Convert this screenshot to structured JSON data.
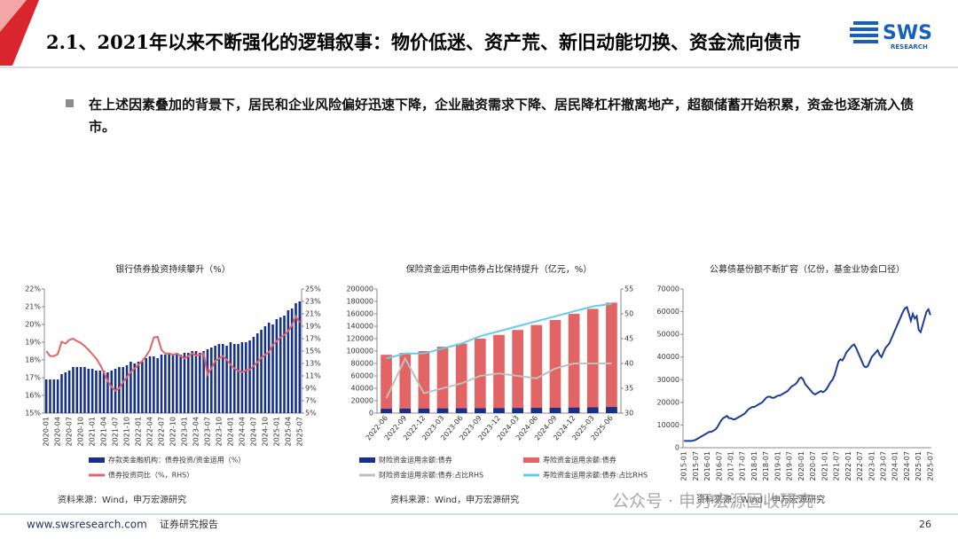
{
  "header": {
    "title": "2.1、2021年以来不断强化的逻辑叙事：物价低迷、资产荒、新旧动能切换、资金流向债市",
    "logo": "SWS",
    "logo_sub": "RESEARCH"
  },
  "bullet": "在上述因素叠加的背景下，居民和企业风险偏好迅速下降，企业融资需求下降、居民降杠杆撤离地产，超额储蓄开始积累，资金也逐渐流入债市。",
  "watermark": "公众号 · 申万宏源固收研究",
  "footer": {
    "website": "www.swsresearch.com",
    "report": "证券研究报告",
    "page": "26"
  },
  "chart_data": [
    {
      "type": "combo",
      "title": "银行债券投资持续攀升（%）",
      "source": "资料来源：Wind，申万宏源研究",
      "categories": [
        "2020-01",
        null,
        null,
        "2020-04",
        null,
        null,
        "2020-07",
        null,
        null,
        "2020-10",
        null,
        null,
        "2021-01",
        null,
        null,
        "2021-04",
        null,
        null,
        "2021-07",
        null,
        null,
        "2021-10",
        null,
        null,
        "2022-01",
        null,
        null,
        "2022-04",
        null,
        null,
        "2022-07",
        null,
        null,
        "2022-10",
        null,
        null,
        "2023-01",
        null,
        null,
        "2023-04",
        null,
        null,
        "2023-07",
        null,
        null,
        "2023-10",
        null,
        null,
        "2024-01",
        null,
        null,
        "2024-04",
        null,
        null,
        "2024-07",
        null,
        null,
        "2024-10",
        null,
        null,
        "2025-01",
        null,
        null,
        "2025-04",
        null,
        null,
        "2025-07"
      ],
      "series": [
        {
          "name": "存款类金融机构：债券投资/资金运用（%）",
          "mark": "bar",
          "color": "#15318a",
          "values": [
            16.9,
            16.9,
            16.9,
            16.9,
            17.2,
            17.3,
            17.4,
            17.6,
            17.6,
            17.6,
            17.6,
            17.5,
            17.5,
            17.4,
            17.4,
            17.4,
            17.3,
            17.4,
            17.5,
            17.6,
            17.6,
            17.7,
            17.9,
            17.8,
            17.9,
            17.9,
            18.1,
            18.2,
            18.2,
            18.1,
            18.3,
            18.3,
            18.4,
            18.3,
            18.4,
            18.3,
            18.4,
            18.4,
            18.5,
            18.5,
            18.4,
            18.5,
            18.6,
            18.7,
            18.8,
            18.9,
            18.9,
            18.8,
            19.0,
            18.9,
            18.9,
            19.0,
            19.0,
            19.1,
            19.3,
            19.5,
            19.7,
            19.9,
            20.1,
            20.0,
            20.3,
            20.4,
            20.5,
            20.8,
            20.9,
            21.2,
            21.3
          ]
        },
        {
          "name": "债券投资同比（%，RHS）",
          "mark": "line",
          "axis": "y2",
          "color": "#e36464",
          "values": [
            15,
            14.2,
            14.2,
            14.5,
            16.5,
            16.2,
            16.8,
            17,
            16.6,
            16.3,
            15.8,
            15.2,
            14.5,
            13.8,
            12.8,
            11.6,
            10.2,
            9.2,
            8.6,
            9.0,
            10.0,
            10.8,
            11.6,
            12.2,
            12.8,
            13.4,
            14.2,
            15.2,
            17.2,
            17.3,
            15.2,
            14.6,
            14.6,
            14.4,
            14.6,
            14.2,
            13.8,
            14.2,
            14.6,
            14.3,
            14.4,
            14.6,
            11.2,
            12.2,
            13.4,
            13.8,
            14.2,
            13.6,
            12.8,
            12.2,
            11.8,
            11.6,
            11.9,
            12.0,
            12.6,
            13.2,
            13.9,
            14.4,
            14.8,
            16.0,
            16.6,
            17.2,
            17.6,
            18.2,
            19.2,
            20.6,
            19.6
          ]
        }
      ],
      "ylim": [
        15,
        22
      ],
      "yticks": [
        {
          "value": 15,
          "label": "15%"
        },
        {
          "value": 16,
          "label": "16%"
        },
        {
          "value": 17,
          "label": "17%"
        },
        {
          "value": 18,
          "label": "18%"
        },
        {
          "value": 19,
          "label": "19%"
        },
        {
          "value": 20,
          "label": "20%"
        },
        {
          "value": 21,
          "label": "21%"
        },
        {
          "value": 22,
          "label": "22%"
        }
      ],
      "y2lim": [
        5,
        25
      ],
      "y2ticks": [
        {
          "value": 5,
          "label": "5%"
        },
        {
          "value": 7,
          "label": "7%"
        },
        {
          "value": 9,
          "label": "9%"
        },
        {
          "value": 11,
          "label": "11%"
        },
        {
          "value": 13,
          "label": "13%"
        },
        {
          "value": 15,
          "label": "15%"
        },
        {
          "value": 17,
          "label": "17%"
        },
        {
          "value": 19,
          "label": "19%"
        },
        {
          "value": 21,
          "label": "21%"
        },
        {
          "value": 23,
          "label": "23%"
        },
        {
          "value": 25,
          "label": "25%"
        }
      ]
    },
    {
      "type": "combo",
      "title": "保险资金运用中债券占比保持提升（亿元，%）",
      "source": "资料来源：Wind，申万宏源研究",
      "categories": [
        "2022-06",
        "2022-09",
        "2022-12",
        "2023-03",
        "2023-06",
        "2023-09",
        "2023-12",
        "2024-03",
        "2024-06",
        "2024-09",
        "2024-12",
        "2025-03",
        "2025-06"
      ],
      "series": [
        {
          "name": "财险资金运用余额:债券",
          "mark": "bar",
          "color": "#15318a",
          "values": [
            7000,
            7200,
            7300,
            7500,
            7700,
            7900,
            8000,
            8200,
            8400,
            8600,
            8900,
            9300,
            9800
          ]
        },
        {
          "name": "寿险资金运用余额:债券",
          "mark": "bar",
          "color": "#e36464",
          "values": [
            94000,
            97000,
            100000,
            107000,
            112000,
            120000,
            126000,
            134000,
            142000,
            150000,
            160000,
            168000,
            178000
          ]
        },
        {
          "name": "财险资金运用余额:债券:占比RHS",
          "mark": "line",
          "axis": "y2",
          "color": "#bfbfbf",
          "values": [
            33,
            41,
            34,
            35,
            36,
            37.5,
            38,
            37.5,
            37,
            39,
            40,
            40,
            40
          ]
        },
        {
          "name": "寿险资金运用余额:债券:占比RHS",
          "mark": "line",
          "axis": "y2",
          "color": "#66ccee",
          "values": [
            41,
            42,
            42,
            43,
            44,
            45.5,
            46.5,
            47.5,
            48.5,
            49.5,
            50.5,
            51.5,
            52
          ]
        }
      ],
      "ylim": [
        0,
        200000
      ],
      "yticks": [
        0,
        20000,
        40000,
        60000,
        80000,
        100000,
        120000,
        140000,
        160000,
        180000,
        200000
      ],
      "y2lim": [
        30,
        55
      ],
      "y2ticks": [
        30,
        35,
        40,
        45,
        50,
        55
      ]
    },
    {
      "type": "line",
      "title": "公募债基份额不断扩容（亿份，基金业协会口径）",
      "source": "资料来源：Wind，申万宏源研究",
      "color": "#1c3d99",
      "categories": [
        "2015-01",
        null,
        null,
        null,
        null,
        null,
        "2015-07",
        null,
        null,
        null,
        null,
        null,
        "2016-01",
        null,
        null,
        null,
        null,
        null,
        "2016-07",
        null,
        null,
        null,
        null,
        null,
        "2017-01",
        null,
        null,
        null,
        null,
        null,
        "2017-07",
        null,
        null,
        null,
        null,
        null,
        "2018-01",
        null,
        null,
        null,
        null,
        null,
        "2018-07",
        null,
        null,
        null,
        null,
        null,
        "2019-01",
        null,
        null,
        null,
        null,
        null,
        "2019-07",
        null,
        null,
        null,
        null,
        null,
        "2020-01",
        null,
        null,
        null,
        null,
        null,
        "2020-07",
        null,
        null,
        null,
        null,
        null,
        "2021-01",
        null,
        null,
        null,
        null,
        null,
        "2021-07",
        null,
        null,
        null,
        null,
        null,
        "2022-01",
        null,
        null,
        null,
        null,
        null,
        "2022-07",
        null,
        null,
        null,
        null,
        null,
        "2023-01",
        null,
        null,
        null,
        null,
        null,
        "2023-07",
        null,
        null,
        null,
        null,
        null,
        "2024-01",
        null,
        null,
        null,
        null,
        null,
        "2024-07",
        null,
        null,
        null,
        null,
        null,
        "2025-01",
        null,
        null,
        null,
        null,
        null,
        "2025-07"
      ],
      "values": [
        3000,
        3000,
        3000,
        3000,
        3000,
        3200,
        3500,
        4000,
        4500,
        5000,
        5500,
        6000,
        6500,
        7000,
        7000,
        7500,
        8000,
        9000,
        10500,
        12000,
        13000,
        13500,
        14000,
        13000,
        13000,
        12500,
        12500,
        13000,
        13500,
        14000,
        14500,
        15000,
        16000,
        17000,
        17500,
        18000,
        18000,
        18500,
        19000,
        19500,
        20000,
        21000,
        22000,
        22500,
        22500,
        22000,
        22000,
        22500,
        23000,
        23000,
        23500,
        24000,
        24500,
        25000,
        26000,
        27000,
        27500,
        28000,
        29000,
        30500,
        31000,
        30000,
        28000,
        27000,
        26000,
        25000,
        24000,
        23500,
        24000,
        24500,
        25000,
        24500,
        25000,
        26000,
        27500,
        29000,
        30000,
        32000,
        35000,
        38000,
        39000,
        38500,
        40000,
        42000,
        43000,
        44000,
        45000,
        45500,
        44000,
        42000,
        40000,
        38000,
        36000,
        35500,
        36000,
        38000,
        40000,
        41000,
        42000,
        43000,
        41000,
        40000,
        42000,
        44000,
        45000,
        46000,
        48000,
        50000,
        52000,
        54000,
        56000,
        58000,
        60000,
        61500,
        62000,
        59000,
        56000,
        59000,
        57000,
        58000,
        52000,
        51000,
        54000,
        57000,
        60000,
        61000,
        58500
      ],
      "ylim": [
        0,
        70000
      ],
      "yticks": [
        0,
        10000,
        20000,
        30000,
        40000,
        50000,
        60000,
        70000
      ]
    }
  ]
}
